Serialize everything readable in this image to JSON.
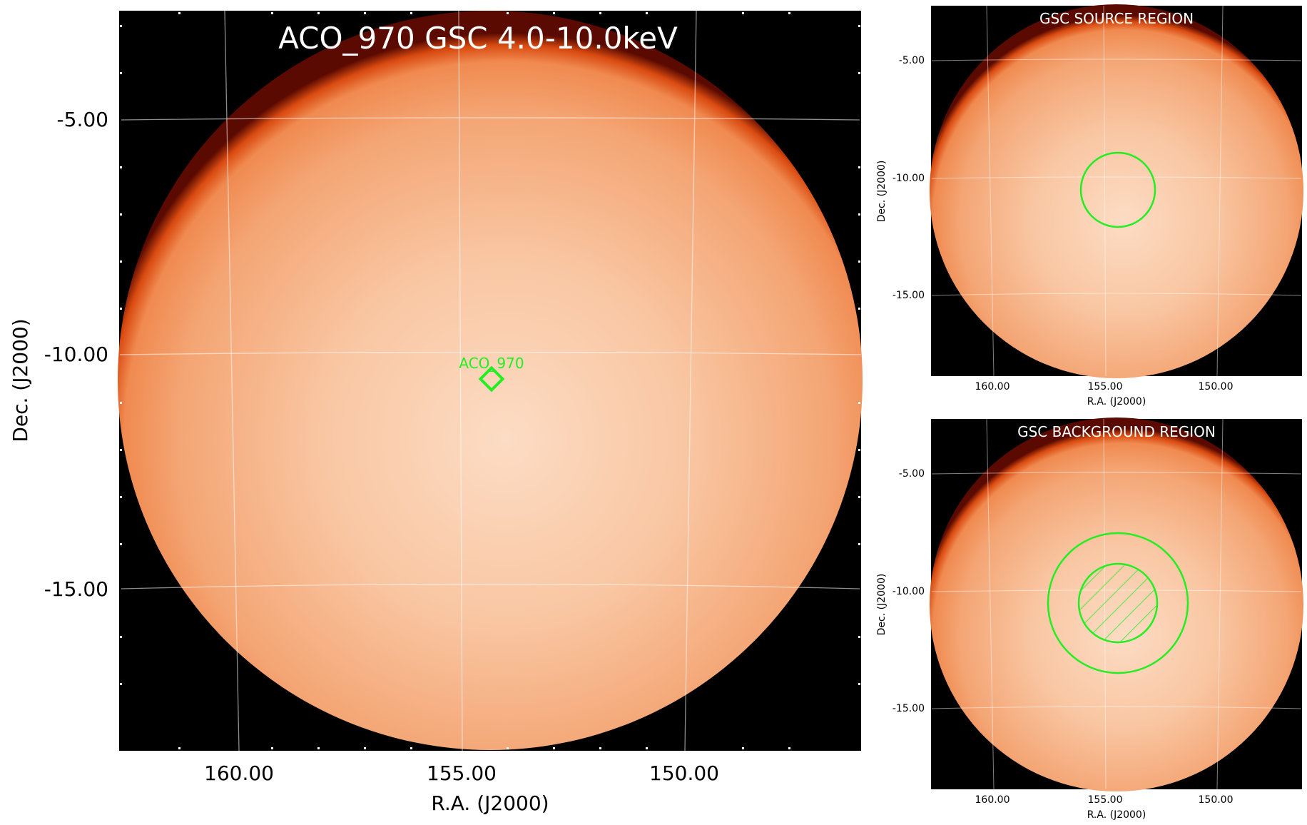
{
  "main_panel": {
    "title": "ACO_970 GSC 4.0-10.0keV",
    "xlabel": "R.A. (J2000)",
    "ylabel": "Dec. (J2000)",
    "x_ticks": [
      "160.00",
      "155.00",
      "150.00"
    ],
    "y_ticks": [
      "-5.00",
      "-10.00",
      "-15.00"
    ],
    "marker": {
      "label": "ACO_970",
      "shape": "diamond",
      "ra": 154.4,
      "dec": -10.55
    }
  },
  "source_panel": {
    "title": "GSC SOURCE REGION",
    "xlabel": "R.A. (J2000)",
    "ylabel": "Dec. (J2000)",
    "x_ticks": [
      "160.00",
      "155.00",
      "150.00"
    ],
    "y_ticks": [
      "-5.00",
      "-10.00",
      "-15.00"
    ],
    "region": {
      "shape": "circle"
    }
  },
  "background_panel": {
    "title": "GSC BACKGROUND REGION",
    "xlabel": "R.A. (J2000)",
    "ylabel": "Dec. (J2000)",
    "x_ticks": [
      "160.00",
      "155.00",
      "150.00"
    ],
    "y_ticks": [
      "-5.00",
      "-10.00",
      "-15.00"
    ],
    "region": {
      "shape": "annulus",
      "excluded_inner": "hatched"
    }
  },
  "colors": {
    "region": "#22ee22",
    "sky_fill": "#f5a070",
    "sky_center": "#fbd9bf",
    "rim": "#cc3300",
    "frame_bg": "#000000",
    "grid": "#ffffff"
  }
}
